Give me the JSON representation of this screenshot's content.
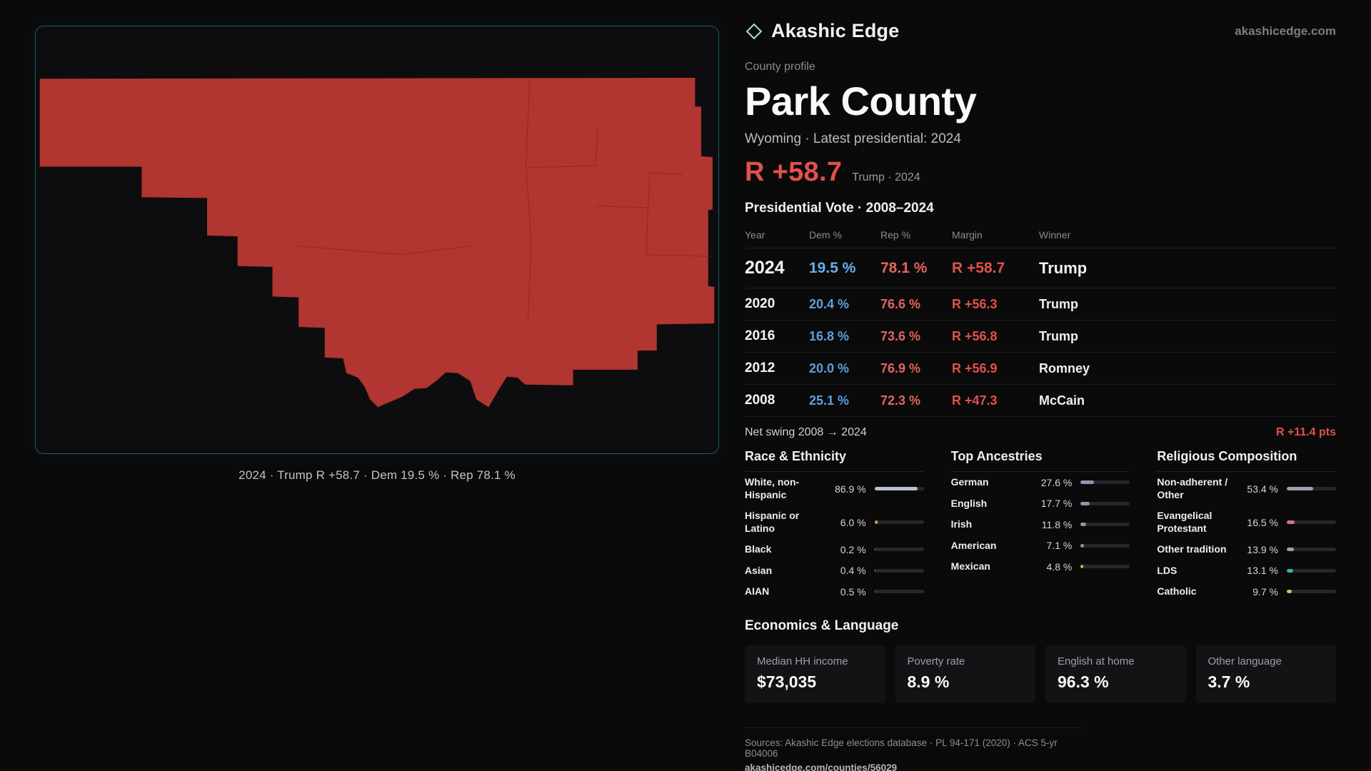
{
  "brand": {
    "name": "Akashic Edge",
    "site": "akashicedge.com"
  },
  "map": {
    "fill_color": "#b13530",
    "caption": "2024 · Trump R +58.7 · Dem 19.5 % · Rep 78.1 %"
  },
  "profile": {
    "eyebrow": "County profile",
    "title": "Park County",
    "subtitle": "Wyoming · Latest presidential: 2024",
    "headline_margin": "R +58.7",
    "headline_note": "Trump · 2024"
  },
  "vote_table": {
    "title": "Presidential Vote · 2008–2024",
    "columns": [
      "Year",
      "Dem %",
      "Rep %",
      "Margin",
      "Winner"
    ],
    "rows": [
      {
        "year": "2024",
        "dem": "19.5 %",
        "rep": "78.1 %",
        "margin": "R +58.7",
        "winner": "Trump"
      },
      {
        "year": "2020",
        "dem": "20.4 %",
        "rep": "76.6 %",
        "margin": "R +56.3",
        "winner": "Trump"
      },
      {
        "year": "2016",
        "dem": "16.8 %",
        "rep": "73.6 %",
        "margin": "R +56.8",
        "winner": "Trump"
      },
      {
        "year": "2012",
        "dem": "20.0 %",
        "rep": "76.9 %",
        "margin": "R +56.9",
        "winner": "Romney"
      },
      {
        "year": "2008",
        "dem": "25.1 %",
        "rep": "72.3 %",
        "margin": "R +47.3",
        "winner": "McCain"
      }
    ],
    "net_swing_label": "Net swing 2008 → 2024",
    "net_swing_value": "R +11.4 pts"
  },
  "sections": {
    "race": {
      "title": "Race & Ethnicity",
      "rows": [
        {
          "label": "White, non-Hispanic",
          "value": "86.9 %",
          "pct": 86.9,
          "color": "#b9c0d4"
        },
        {
          "label": "Hispanic or Latino",
          "value": "6.0 %",
          "pct": 6.0,
          "color": "#e2a43c"
        },
        {
          "label": "Black",
          "value": "0.2 %",
          "pct": 0.2,
          "color": "#8d96ab"
        },
        {
          "label": "Asian",
          "value": "0.4 %",
          "pct": 0.4,
          "color": "#8d96ab"
        },
        {
          "label": "AIAN",
          "value": "0.5 %",
          "pct": 0.5,
          "color": "#c14f3f"
        }
      ]
    },
    "ancestries": {
      "title": "Top Ancestries",
      "rows": [
        {
          "label": "German",
          "value": "27.6 %",
          "pct": 27.6,
          "color": "#8d96ab"
        },
        {
          "label": "English",
          "value": "17.7 %",
          "pct": 17.7,
          "color": "#8d96ab"
        },
        {
          "label": "Irish",
          "value": "11.8 %",
          "pct": 11.8,
          "color": "#8d96ab"
        },
        {
          "label": "American",
          "value": "7.1 %",
          "pct": 7.1,
          "color": "#8d96ab"
        },
        {
          "label": "Mexican",
          "value": "4.8 %",
          "pct": 4.8,
          "color": "#d9a83f"
        }
      ]
    },
    "religion": {
      "title": "Religious Composition",
      "rows": [
        {
          "label": "Non-adherent / Other",
          "value": "53.4 %",
          "pct": 53.4,
          "color": "#9aa0ad"
        },
        {
          "label": "Evangelical Protestant",
          "value": "16.5 %",
          "pct": 16.5,
          "color": "#e0707f"
        },
        {
          "label": "Other tradition",
          "value": "13.9 %",
          "pct": 13.9,
          "color": "#9aa0ad"
        },
        {
          "label": "LDS",
          "value": "13.1 %",
          "pct": 13.1,
          "color": "#2fb8ad"
        },
        {
          "label": "Catholic",
          "value": "9.7 %",
          "pct": 9.7,
          "color": "#d9c14a"
        }
      ]
    }
  },
  "economics": {
    "title": "Economics & Language",
    "stats": [
      {
        "label": "Median HH income",
        "value": "$73,035"
      },
      {
        "label": "Poverty rate",
        "value": "8.9 %"
      },
      {
        "label": "English at home",
        "value": "96.3 %"
      },
      {
        "label": "Other language",
        "value": "3.7 %"
      }
    ]
  },
  "footer": {
    "sources": "Sources: Akashic Edge elections database · PL 94-171 (2020) · ACS 5-yr B04006",
    "permalink": "akashicedge.com/counties/56029"
  }
}
